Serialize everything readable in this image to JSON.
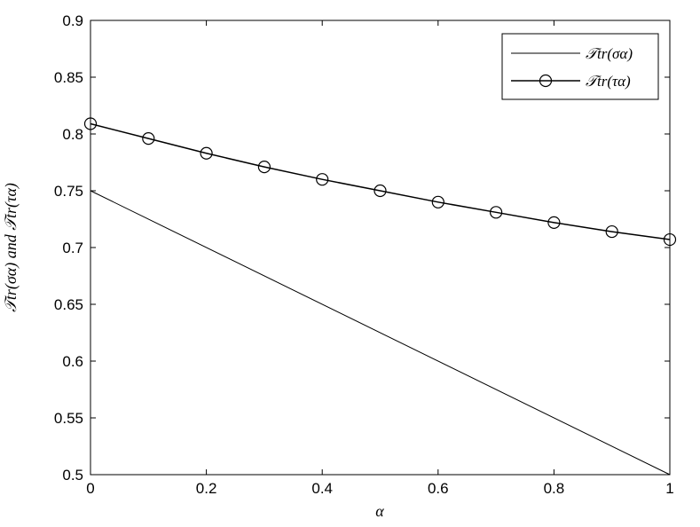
{
  "chart_data": {
    "type": "line",
    "xlabel": "α",
    "ylabel": "𝒯tr(σα) and 𝒯tr(τα)",
    "xlim": [
      0,
      1
    ],
    "ylim": [
      0.5,
      0.9
    ],
    "xticks": [
      "0",
      "0.2",
      "0.4",
      "0.6",
      "0.8",
      "1"
    ],
    "yticks": [
      "0.5",
      "0.55",
      "0.6",
      "0.65",
      "0.7",
      "0.75",
      "0.8",
      "0.85",
      "0.9"
    ],
    "grid": false,
    "legend_position": "top-right",
    "series": [
      {
        "name": "𝒯tr(σα)",
        "marker": "none",
        "x": [
          0,
          1
        ],
        "y": [
          0.75,
          0.5
        ]
      },
      {
        "name": "𝒯tr(τα)",
        "marker": "circle",
        "x": [
          0,
          0.1,
          0.2,
          0.3,
          0.4,
          0.5,
          0.6,
          0.7,
          0.8,
          0.9,
          1.0
        ],
        "y": [
          0.809,
          0.796,
          0.783,
          0.771,
          0.76,
          0.75,
          0.74,
          0.731,
          0.722,
          0.714,
          0.707
        ]
      }
    ]
  }
}
